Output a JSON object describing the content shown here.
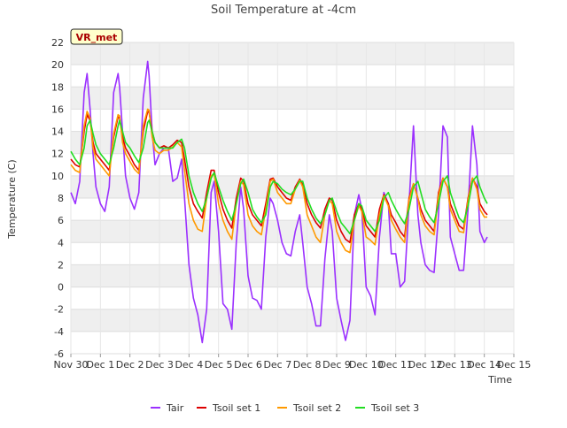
{
  "chart_data": {
    "type": "line",
    "title": "Soil Temperature at -4cm",
    "xlabel": "Time",
    "ylabel": "Temperature (C)",
    "site_label": "VR_met",
    "ylim": [
      -6,
      22
    ],
    "xlim": [
      0,
      15
    ],
    "yticks": [
      -6,
      -4,
      -2,
      0,
      2,
      4,
      6,
      8,
      10,
      12,
      14,
      16,
      18,
      20,
      22
    ],
    "xtick_labels": [
      "Nov 30",
      "Dec 1",
      "Dec 2",
      "Dec 3",
      "Dec 4",
      "Dec 5",
      "Dec 6",
      "Dec 7",
      "Dec 8",
      "Dec 9",
      "Dec 10",
      "Dec 11",
      "Dec 12",
      "Dec 13",
      "Dec 14",
      "Dec 15"
    ],
    "x_note": "x values are days after Nov 30 00:00",
    "grid": true,
    "legend_position": "bottom",
    "series": [
      {
        "name": "Tair",
        "color": "#9b30ff",
        "x": [
          0.0,
          0.15,
          0.3,
          0.45,
          0.55,
          0.65,
          0.75,
          0.85,
          1.0,
          1.15,
          1.3,
          1.45,
          1.6,
          1.65,
          1.75,
          1.85,
          2.0,
          2.15,
          2.3,
          2.45,
          2.6,
          2.65,
          2.75,
          2.85,
          3.0,
          3.15,
          3.3,
          3.45,
          3.6,
          3.75,
          3.85,
          4.0,
          4.15,
          4.3,
          4.45,
          4.6,
          4.75,
          4.85,
          5.0,
          5.15,
          5.3,
          5.45,
          5.6,
          5.75,
          5.85,
          6.0,
          6.15,
          6.3,
          6.45,
          6.6,
          6.75,
          6.85,
          7.0,
          7.15,
          7.3,
          7.45,
          7.6,
          7.75,
          7.85,
          8.0,
          8.15,
          8.3,
          8.45,
          8.6,
          8.75,
          8.85,
          9.0,
          9.15,
          9.3,
          9.45,
          9.6,
          9.75,
          9.85,
          10.0,
          10.15,
          10.3,
          10.45,
          10.6,
          10.75,
          10.85,
          11.0,
          11.15,
          11.3,
          11.45,
          11.6,
          11.75,
          11.85,
          12.0,
          12.15,
          12.3,
          12.45,
          12.6,
          12.75,
          12.85,
          13.0,
          13.15,
          13.3,
          13.45,
          13.6,
          13.75,
          13.85,
          14.0,
          14.1
        ],
        "y": [
          8.5,
          7.5,
          9.5,
          17.5,
          19.2,
          16.0,
          12.0,
          9.0,
          7.5,
          6.8,
          9.0,
          17.5,
          19.2,
          18.0,
          14.0,
          10.0,
          8.0,
          7.0,
          8.5,
          17.0,
          20.3,
          19.0,
          14.0,
          11.0,
          12.0,
          12.5,
          12.5,
          9.5,
          9.8,
          11.5,
          8.0,
          2.0,
          -1.0,
          -2.5,
          -5.0,
          -2.0,
          8.5,
          9.5,
          5.0,
          -1.5,
          -2.0,
          -3.8,
          4.0,
          9.0,
          7.0,
          1.0,
          -1.0,
          -1.2,
          -2.0,
          4.5,
          8.0,
          7.5,
          6.0,
          4.0,
          3.0,
          2.8,
          5.0,
          6.5,
          4.0,
          0.0,
          -1.5,
          -3.5,
          -3.5,
          2.5,
          6.5,
          5.0,
          -1.0,
          -3.0,
          -4.8,
          -3.0,
          6.5,
          8.3,
          7.0,
          0.0,
          -0.8,
          -2.5,
          4.5,
          8.5,
          7.5,
          3.0,
          3.0,
          0.0,
          0.5,
          7.5,
          14.5,
          6.5,
          4.0,
          2.0,
          1.5,
          1.3,
          6.5,
          14.5,
          13.5,
          4.5,
          3.0,
          1.5,
          1.5,
          7.0,
          14.5,
          11.0,
          5.0,
          4.0,
          4.5
        ]
      },
      {
        "name": "Tsoil set 1",
        "color": "#dd0000",
        "x": [
          0.0,
          0.15,
          0.3,
          0.45,
          0.55,
          0.65,
          0.75,
          0.85,
          1.0,
          1.15,
          1.3,
          1.45,
          1.6,
          1.65,
          1.75,
          1.85,
          2.0,
          2.15,
          2.3,
          2.45,
          2.6,
          2.65,
          2.75,
          2.85,
          3.0,
          3.15,
          3.3,
          3.45,
          3.6,
          3.75,
          3.85,
          4.0,
          4.15,
          4.3,
          4.45,
          4.6,
          4.75,
          4.85,
          5.0,
          5.15,
          5.3,
          5.45,
          5.6,
          5.75,
          5.85,
          6.0,
          6.15,
          6.3,
          6.45,
          6.6,
          6.75,
          6.85,
          7.0,
          7.15,
          7.3,
          7.45,
          7.6,
          7.75,
          7.85,
          8.0,
          8.15,
          8.3,
          8.45,
          8.6,
          8.75,
          8.85,
          9.0,
          9.15,
          9.3,
          9.45,
          9.6,
          9.75,
          9.85,
          10.0,
          10.15,
          10.3,
          10.45,
          10.6,
          10.75,
          10.85,
          11.0,
          11.15,
          11.3,
          11.45,
          11.6,
          11.75,
          11.85,
          12.0,
          12.15,
          12.3,
          12.45,
          12.6,
          12.75,
          12.85,
          13.0,
          13.15,
          13.3,
          13.45,
          13.6,
          13.75,
          13.85,
          14.0,
          14.1
        ],
        "y": [
          11.5,
          11.0,
          10.8,
          14.0,
          15.5,
          15.0,
          13.0,
          12.0,
          11.5,
          11.0,
          10.5,
          13.5,
          15.3,
          15.2,
          13.5,
          12.5,
          11.8,
          11.0,
          10.5,
          14.0,
          15.8,
          15.7,
          14.0,
          13.0,
          12.5,
          12.7,
          12.5,
          12.8,
          13.2,
          13.0,
          11.5,
          9.0,
          7.5,
          6.8,
          6.2,
          8.5,
          10.5,
          10.5,
          8.5,
          7.0,
          6.0,
          5.3,
          8.0,
          9.8,
          9.5,
          7.5,
          6.5,
          6.0,
          5.5,
          7.5,
          9.7,
          9.8,
          9.0,
          8.5,
          8.0,
          7.8,
          9.0,
          9.7,
          9.2,
          7.5,
          6.5,
          5.8,
          5.3,
          7.0,
          8.0,
          7.8,
          6.0,
          5.0,
          4.3,
          4.0,
          6.5,
          7.5,
          7.0,
          5.5,
          5.0,
          4.5,
          7.0,
          8.3,
          7.5,
          6.5,
          5.8,
          5.0,
          4.5,
          8.0,
          9.3,
          8.0,
          7.0,
          6.0,
          5.5,
          5.0,
          8.5,
          9.8,
          9.0,
          7.5,
          6.5,
          5.5,
          5.2,
          8.0,
          9.8,
          9.0,
          7.5,
          6.8,
          6.5
        ]
      },
      {
        "name": "Tsoil set 2",
        "color": "#ff9900",
        "x": [
          0.0,
          0.15,
          0.3,
          0.45,
          0.55,
          0.65,
          0.75,
          0.85,
          1.0,
          1.15,
          1.3,
          1.45,
          1.6,
          1.65,
          1.75,
          1.85,
          2.0,
          2.15,
          2.3,
          2.45,
          2.6,
          2.65,
          2.75,
          2.85,
          3.0,
          3.15,
          3.3,
          3.45,
          3.6,
          3.75,
          3.85,
          4.0,
          4.15,
          4.3,
          4.45,
          4.6,
          4.75,
          4.85,
          5.0,
          5.15,
          5.3,
          5.45,
          5.6,
          5.75,
          5.85,
          6.0,
          6.15,
          6.3,
          6.45,
          6.6,
          6.75,
          6.85,
          7.0,
          7.15,
          7.3,
          7.45,
          7.6,
          7.75,
          7.85,
          8.0,
          8.15,
          8.3,
          8.45,
          8.6,
          8.75,
          8.85,
          9.0,
          9.15,
          9.3,
          9.45,
          9.6,
          9.75,
          9.85,
          10.0,
          10.15,
          10.3,
          10.45,
          10.6,
          10.75,
          10.85,
          11.0,
          11.15,
          11.3,
          11.45,
          11.6,
          11.75,
          11.85,
          12.0,
          12.15,
          12.3,
          12.45,
          12.6,
          12.75,
          12.85,
          13.0,
          13.15,
          13.3,
          13.45,
          13.6,
          13.75,
          13.85,
          14.0,
          14.1
        ],
        "y": [
          11.0,
          10.5,
          10.3,
          14.5,
          15.8,
          15.2,
          12.5,
          11.5,
          11.0,
          10.5,
          10.0,
          13.8,
          15.5,
          15.4,
          13.0,
          12.0,
          11.3,
          10.6,
          10.2,
          14.5,
          16.0,
          15.9,
          13.5,
          12.3,
          12.0,
          12.3,
          12.3,
          12.6,
          13.0,
          12.6,
          10.5,
          7.5,
          6.0,
          5.2,
          5.0,
          8.0,
          10.0,
          10.2,
          7.5,
          6.0,
          5.0,
          4.3,
          7.5,
          9.5,
          9.2,
          6.5,
          5.5,
          5.0,
          4.7,
          7.0,
          9.5,
          9.7,
          8.5,
          8.0,
          7.5,
          7.5,
          8.8,
          9.6,
          9.0,
          6.5,
          5.5,
          4.5,
          4.0,
          6.5,
          7.8,
          7.5,
          5.0,
          4.0,
          3.3,
          3.1,
          6.0,
          7.3,
          6.8,
          4.5,
          4.2,
          3.8,
          6.5,
          8.2,
          7.3,
          6.0,
          5.2,
          4.5,
          4.0,
          7.8,
          9.3,
          8.0,
          6.5,
          5.5,
          5.0,
          4.7,
          8.2,
          9.8,
          9.0,
          7.0,
          6.0,
          5.0,
          4.9,
          7.8,
          9.8,
          8.8,
          7.0,
          6.3,
          6.3
        ]
      },
      {
        "name": "Tsoil set 3",
        "color": "#22dd22",
        "x": [
          0.0,
          0.15,
          0.3,
          0.45,
          0.55,
          0.65,
          0.75,
          0.85,
          1.0,
          1.15,
          1.3,
          1.45,
          1.6,
          1.65,
          1.75,
          1.85,
          2.0,
          2.15,
          2.3,
          2.45,
          2.6,
          2.65,
          2.75,
          2.85,
          3.0,
          3.15,
          3.3,
          3.45,
          3.6,
          3.75,
          3.85,
          4.0,
          4.15,
          4.3,
          4.45,
          4.6,
          4.75,
          4.85,
          5.0,
          5.15,
          5.3,
          5.45,
          5.6,
          5.75,
          5.85,
          6.0,
          6.15,
          6.3,
          6.45,
          6.6,
          6.75,
          6.85,
          7.0,
          7.15,
          7.3,
          7.45,
          7.6,
          7.75,
          7.85,
          8.0,
          8.15,
          8.3,
          8.45,
          8.6,
          8.75,
          8.85,
          9.0,
          9.15,
          9.3,
          9.45,
          9.6,
          9.75,
          9.85,
          10.0,
          10.15,
          10.3,
          10.45,
          10.6,
          10.75,
          10.85,
          11.0,
          11.15,
          11.3,
          11.45,
          11.6,
          11.75,
          11.85,
          12.0,
          12.15,
          12.3,
          12.45,
          12.6,
          12.75,
          12.85,
          13.0,
          13.15,
          13.3,
          13.45,
          13.6,
          13.75,
          13.85,
          14.0,
          14.1
        ],
        "y": [
          12.2,
          11.5,
          11.0,
          12.5,
          14.5,
          15.0,
          13.8,
          12.8,
          12.0,
          11.5,
          11.0,
          12.5,
          14.5,
          15.0,
          14.0,
          13.0,
          12.5,
          11.8,
          11.2,
          12.5,
          14.8,
          15.0,
          14.0,
          13.0,
          12.5,
          12.5,
          12.5,
          12.5,
          13.0,
          13.3,
          12.5,
          10.0,
          8.5,
          7.5,
          6.8,
          8.0,
          9.8,
          10.3,
          9.0,
          7.8,
          6.8,
          6.0,
          7.5,
          9.3,
          9.7,
          8.5,
          7.0,
          6.3,
          5.8,
          6.5,
          9.0,
          9.5,
          9.3,
          8.8,
          8.5,
          8.3,
          8.8,
          9.5,
          9.5,
          8.0,
          7.0,
          6.2,
          5.7,
          6.5,
          7.8,
          8.0,
          6.8,
          5.8,
          5.3,
          4.8,
          6.0,
          7.5,
          7.3,
          6.0,
          5.5,
          5.0,
          6.0,
          8.0,
          8.5,
          7.8,
          7.0,
          6.3,
          5.7,
          7.0,
          9.0,
          9.5,
          8.5,
          7.0,
          6.3,
          5.8,
          7.5,
          9.5,
          10.0,
          8.5,
          7.3,
          6.2,
          5.8,
          7.3,
          9.5,
          10.0,
          9.0,
          8.0,
          7.5
        ]
      }
    ]
  }
}
